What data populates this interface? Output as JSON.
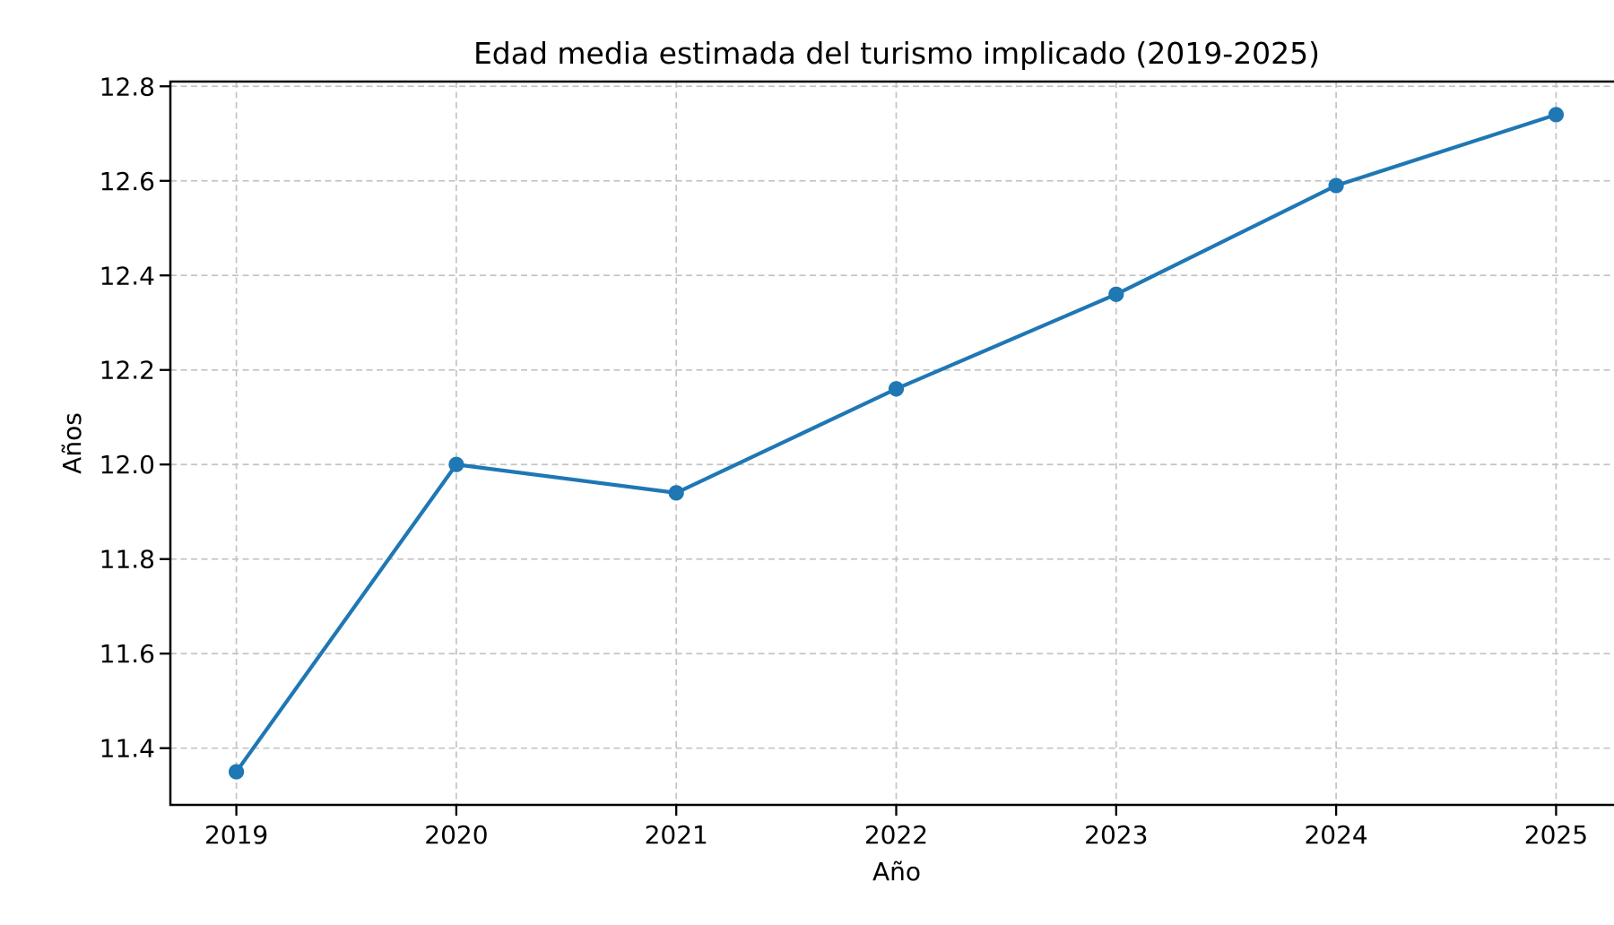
{
  "chart_data": {
    "type": "line",
    "title": "Edad media estimada del turismo implicado (2019-2025)",
    "xlabel": "Año",
    "ylabel": "Años",
    "x": [
      2019,
      2020,
      2021,
      2022,
      2023,
      2024,
      2025
    ],
    "xtick_labels": [
      "2019",
      "2020",
      "2021",
      "2022",
      "2023",
      "2024",
      "2025"
    ],
    "values": [
      11.35,
      12.0,
      11.94,
      12.16,
      12.36,
      12.59,
      12.74
    ],
    "series_name": "Edad media estimada",
    "yticks": [
      11.4,
      11.6,
      11.8,
      12.0,
      12.2,
      12.4,
      12.6,
      12.8
    ],
    "ytick_labels": [
      "11.4",
      "11.6",
      "11.8",
      "12.0",
      "12.2",
      "12.4",
      "12.6",
      "12.8"
    ],
    "xlim": [
      2018.7,
      2025.3
    ],
    "ylim": [
      11.28,
      12.81
    ],
    "grid": true,
    "grid_style": "dashed",
    "legend": "none",
    "marker": "circle",
    "line_color": "#1f77b4",
    "marker_color": "#1f77b4",
    "grid_color": "#c4c4c4",
    "axis_color": "#000000",
    "text_color": "#000000",
    "background_color": "#ffffff"
  }
}
